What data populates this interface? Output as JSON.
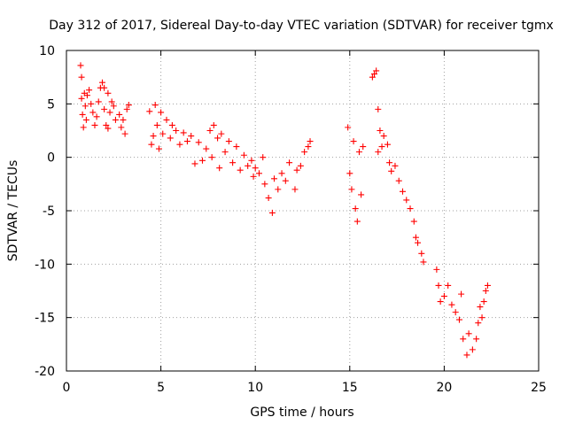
{
  "chart_data": {
    "type": "scatter",
    "title": "Day 312 of 2017, Sidereal Day-to-day VTEC variation (SDTVAR) for receiver tgmx",
    "xlabel": "GPS time / hours",
    "ylabel": "SDTVAR / TECUs",
    "xlim": [
      0,
      25
    ],
    "ylim": [
      -20,
      10
    ],
    "xticks": [
      0,
      5,
      10,
      15,
      20,
      25
    ],
    "yticks": [
      -20,
      -15,
      -10,
      -5,
      0,
      5,
      10
    ],
    "grid": true,
    "marker": "plus",
    "color": "#ff0000",
    "series": [
      {
        "name": "tgmx SDTVAR",
        "points": [
          [
            0.75,
            8.6
          ],
          [
            0.8,
            7.5
          ],
          [
            0.8,
            5.5
          ],
          [
            0.85,
            4.0
          ],
          [
            0.9,
            2.8
          ],
          [
            0.95,
            6.0
          ],
          [
            1.0,
            4.8
          ],
          [
            1.05,
            3.5
          ],
          [
            1.1,
            5.8
          ],
          [
            1.2,
            6.3
          ],
          [
            1.3,
            5.0
          ],
          [
            1.4,
            4.2
          ],
          [
            1.5,
            3.0
          ],
          [
            1.6,
            3.8
          ],
          [
            1.7,
            5.2
          ],
          [
            1.8,
            6.5
          ],
          [
            1.9,
            7.0
          ],
          [
            2.0,
            6.5
          ],
          [
            2.0,
            4.5
          ],
          [
            2.1,
            3.0
          ],
          [
            2.2,
            2.7
          ],
          [
            2.2,
            6.0
          ],
          [
            2.3,
            4.2
          ],
          [
            2.4,
            5.2
          ],
          [
            2.5,
            4.8
          ],
          [
            2.6,
            3.5
          ],
          [
            2.8,
            4.0
          ],
          [
            2.9,
            2.8
          ],
          [
            3.0,
            3.5
          ],
          [
            3.1,
            2.2
          ],
          [
            3.2,
            4.5
          ],
          [
            3.3,
            4.9
          ],
          [
            4.4,
            4.3
          ],
          [
            4.5,
            1.2
          ],
          [
            4.6,
            2.0
          ],
          [
            4.7,
            4.9
          ],
          [
            4.8,
            3.0
          ],
          [
            4.9,
            0.8
          ],
          [
            5.0,
            4.2
          ],
          [
            5.1,
            2.2
          ],
          [
            5.3,
            3.5
          ],
          [
            5.5,
            1.8
          ],
          [
            5.6,
            3.0
          ],
          [
            5.8,
            2.5
          ],
          [
            6.0,
            1.2
          ],
          [
            6.2,
            2.3
          ],
          [
            6.4,
            1.5
          ],
          [
            6.6,
            2.0
          ],
          [
            6.8,
            -0.6
          ],
          [
            7.0,
            1.4
          ],
          [
            7.2,
            -0.3
          ],
          [
            7.4,
            0.8
          ],
          [
            7.6,
            2.5
          ],
          [
            7.7,
            0.0
          ],
          [
            7.8,
            3.0
          ],
          [
            8.0,
            1.8
          ],
          [
            8.1,
            -1.0
          ],
          [
            8.2,
            2.2
          ],
          [
            8.4,
            0.5
          ],
          [
            8.6,
            1.5
          ],
          [
            8.8,
            -0.5
          ],
          [
            9.0,
            1.0
          ],
          [
            9.2,
            -1.2
          ],
          [
            9.4,
            0.2
          ],
          [
            9.6,
            -0.8
          ],
          [
            9.8,
            -0.3
          ],
          [
            9.9,
            -1.8
          ],
          [
            10.0,
            -1.0
          ],
          [
            10.2,
            -1.5
          ],
          [
            10.4,
            0.0
          ],
          [
            10.5,
            -2.5
          ],
          [
            10.7,
            -3.8
          ],
          [
            10.9,
            -5.2
          ],
          [
            11.0,
            -2.0
          ],
          [
            11.2,
            -3.0
          ],
          [
            11.4,
            -1.5
          ],
          [
            11.6,
            -2.2
          ],
          [
            11.8,
            -0.5
          ],
          [
            12.1,
            -3.0
          ],
          [
            12.2,
            -1.2
          ],
          [
            12.4,
            -0.8
          ],
          [
            12.6,
            0.5
          ],
          [
            12.8,
            1.0
          ],
          [
            12.9,
            1.5
          ],
          [
            14.9,
            2.8
          ],
          [
            15.0,
            -1.5
          ],
          [
            15.1,
            -3.0
          ],
          [
            15.2,
            1.5
          ],
          [
            15.3,
            -4.8
          ],
          [
            15.4,
            -6.0
          ],
          [
            15.5,
            0.5
          ],
          [
            15.6,
            -3.5
          ],
          [
            15.7,
            1.0
          ],
          [
            16.2,
            7.5
          ],
          [
            16.3,
            7.8
          ],
          [
            16.4,
            8.1
          ],
          [
            16.5,
            0.5
          ],
          [
            16.5,
            4.5
          ],
          [
            16.6,
            2.5
          ],
          [
            16.7,
            1.0
          ],
          [
            16.8,
            2.0
          ],
          [
            17.0,
            1.2
          ],
          [
            17.1,
            -0.5
          ],
          [
            17.2,
            -1.3
          ],
          [
            17.4,
            -0.8
          ],
          [
            17.6,
            -2.2
          ],
          [
            17.8,
            -3.2
          ],
          [
            18.0,
            -4.0
          ],
          [
            18.2,
            -4.8
          ],
          [
            18.4,
            -6.0
          ],
          [
            18.5,
            -7.5
          ],
          [
            18.6,
            -8.0
          ],
          [
            18.8,
            -9.0
          ],
          [
            18.9,
            -9.8
          ],
          [
            19.6,
            -10.5
          ],
          [
            19.7,
            -12.0
          ],
          [
            19.8,
            -13.5
          ],
          [
            20.0,
            -13.0
          ],
          [
            20.2,
            -12.0
          ],
          [
            20.4,
            -13.8
          ],
          [
            20.6,
            -14.5
          ],
          [
            20.8,
            -15.2
          ],
          [
            20.9,
            -12.8
          ],
          [
            21.0,
            -17.0
          ],
          [
            21.2,
            -18.5
          ],
          [
            21.3,
            -16.5
          ],
          [
            21.5,
            -18.0
          ],
          [
            21.7,
            -17.0
          ],
          [
            21.8,
            -15.5
          ],
          [
            21.9,
            -14.0
          ],
          [
            22.0,
            -15.0
          ],
          [
            22.1,
            -13.5
          ],
          [
            22.2,
            -12.5
          ],
          [
            22.3,
            -12.0
          ]
        ]
      }
    ]
  }
}
